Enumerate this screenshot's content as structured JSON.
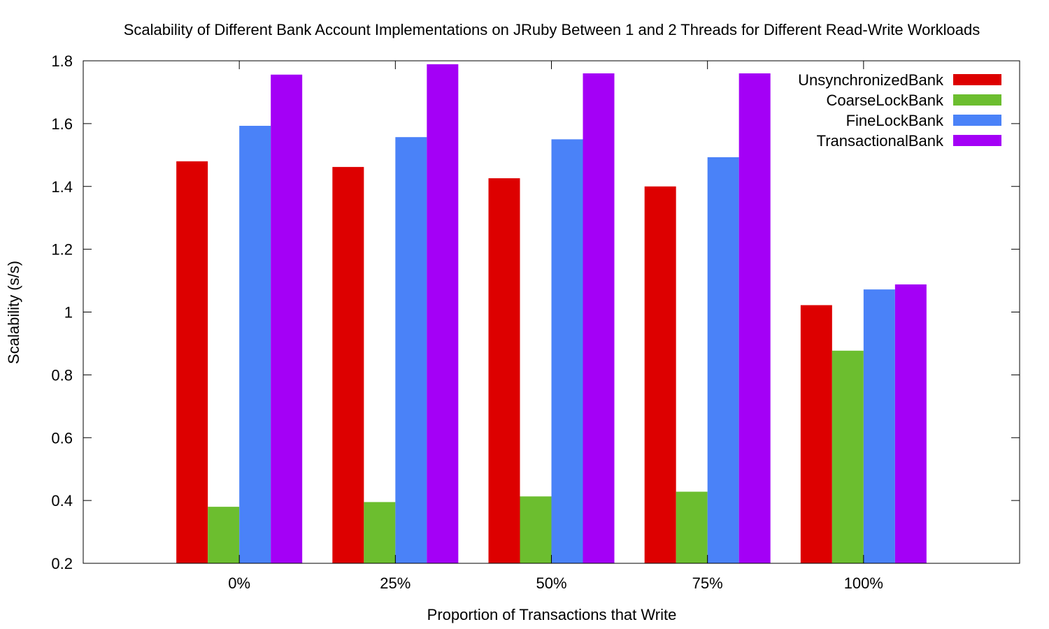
{
  "chart_data": {
    "type": "bar",
    "title": "Scalability of Different Bank Account Implementations on JRuby Between 1 and 2 Threads for Different Read-Write Workloads",
    "xlabel": "Proportion of Transactions that Write",
    "ylabel": "Scalability (s/s)",
    "categories": [
      "0%",
      "25%",
      "50%",
      "75%",
      "100%"
    ],
    "ylim": [
      0.2,
      1.8
    ],
    "yticks": [
      "0.2",
      "0.4",
      "0.6",
      "0.8",
      "1",
      "1.2",
      "1.4",
      "1.6",
      "1.8"
    ],
    "legend_position": "top-right",
    "grid": false,
    "series": [
      {
        "name": "UnsynchronizedBank",
        "color": "#dd0000",
        "values": [
          1.48,
          1.462,
          1.426,
          1.4,
          1.022
        ]
      },
      {
        "name": "CoarseLockBank",
        "color": "#6cbe2f",
        "values": [
          0.38,
          0.395,
          0.413,
          0.428,
          0.877
        ]
      },
      {
        "name": "FineLockBank",
        "color": "#4a82f8",
        "values": [
          1.593,
          1.557,
          1.55,
          1.493,
          1.072
        ]
      },
      {
        "name": "TransactionalBank",
        "color": "#a400f6",
        "values": [
          1.756,
          1.789,
          1.76,
          1.76,
          1.088
        ]
      }
    ]
  }
}
